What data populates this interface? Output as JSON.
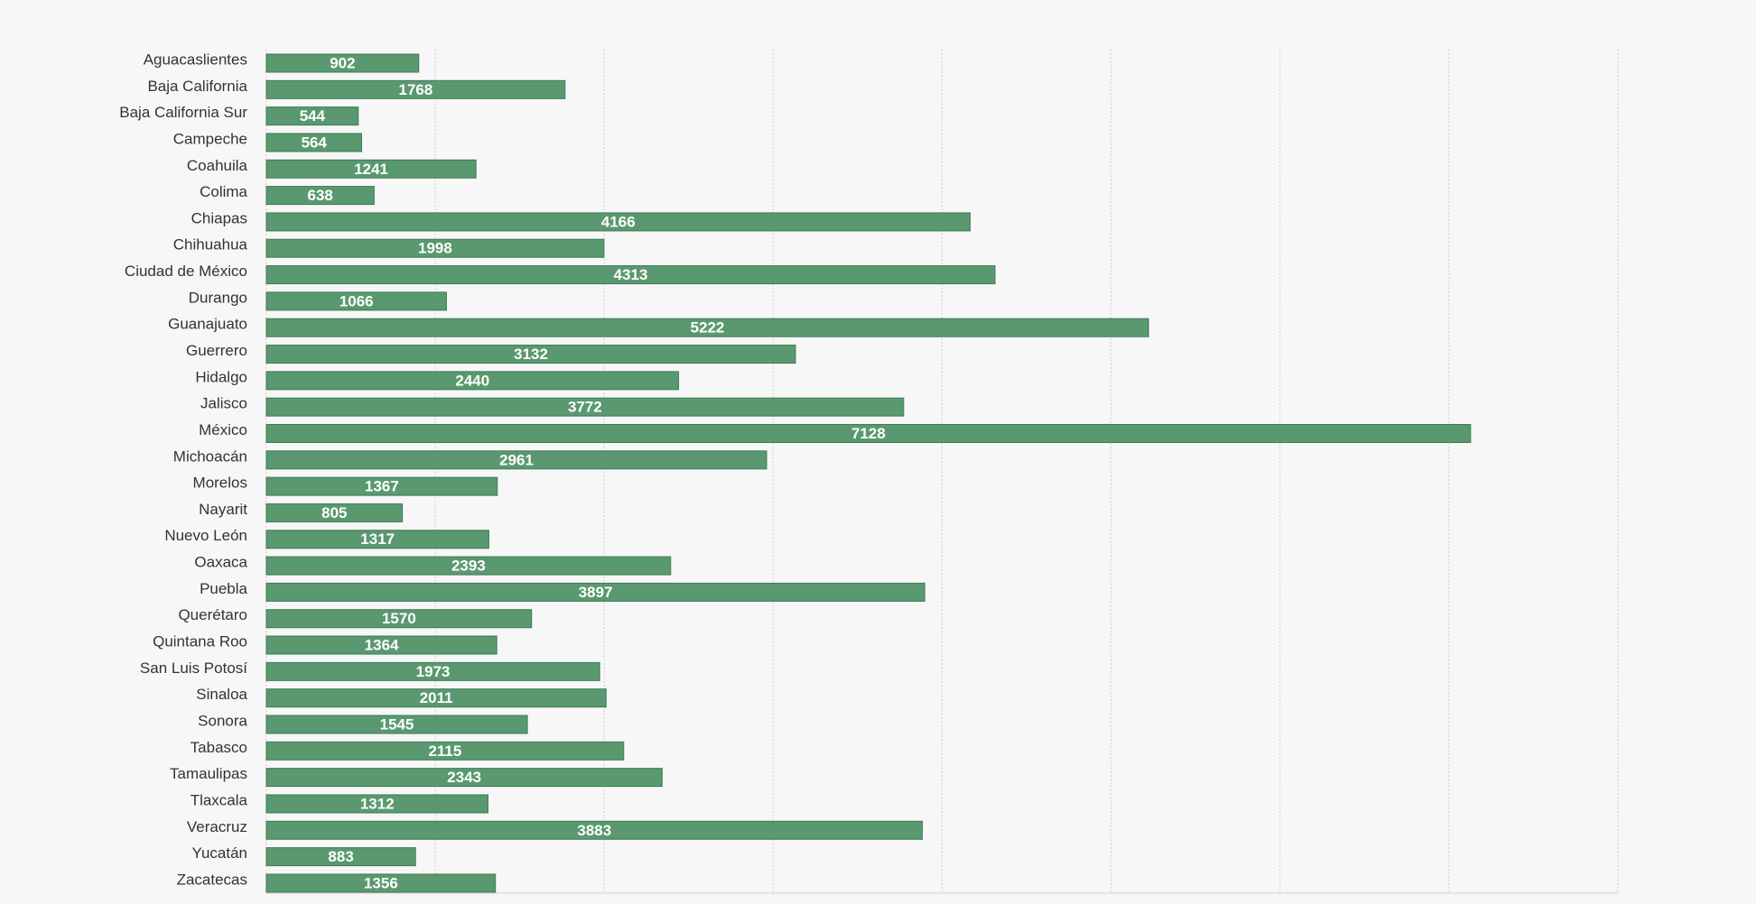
{
  "chart_data": {
    "type": "bar",
    "orientation": "horizontal",
    "categories": [
      "Aguacaslientes",
      "Baja California",
      "Baja California Sur",
      "Campeche",
      "Coahuila",
      "Colima",
      "Chiapas",
      "Chihuahua",
      "Ciudad de México",
      "Durango",
      "Guanajuato",
      "Guerrero",
      "Hidalgo",
      "Jalisco",
      "México",
      "Michoacán",
      "Morelos",
      "Nayarit",
      "Nuevo León",
      "Oaxaca",
      "Puebla",
      "Querétaro",
      "Quintana Roo",
      "San Luis Potosí",
      "Sinaloa",
      "Sonora",
      "Tabasco",
      "Tamaulipas",
      "Tlaxcala",
      "Veracruz",
      "Yucatán",
      "Zacatecas"
    ],
    "values": [
      902,
      1768,
      544,
      564,
      1241,
      638,
      4166,
      1998,
      4313,
      1066,
      5222,
      3132,
      2440,
      3772,
      7128,
      2961,
      1367,
      805,
      1317,
      2393,
      3897,
      1570,
      1364,
      1973,
      2011,
      1545,
      2115,
      2343,
      1312,
      3883,
      883,
      1356
    ],
    "data_labels": true,
    "xlim": [
      0,
      8000
    ],
    "x_gridline_step": 1000,
    "grid": true,
    "bar_color": "#5a9970",
    "bar_border_color": "#3f7a55",
    "label_color": "#ffffff",
    "title": "",
    "xlabel": "",
    "ylabel": ""
  }
}
